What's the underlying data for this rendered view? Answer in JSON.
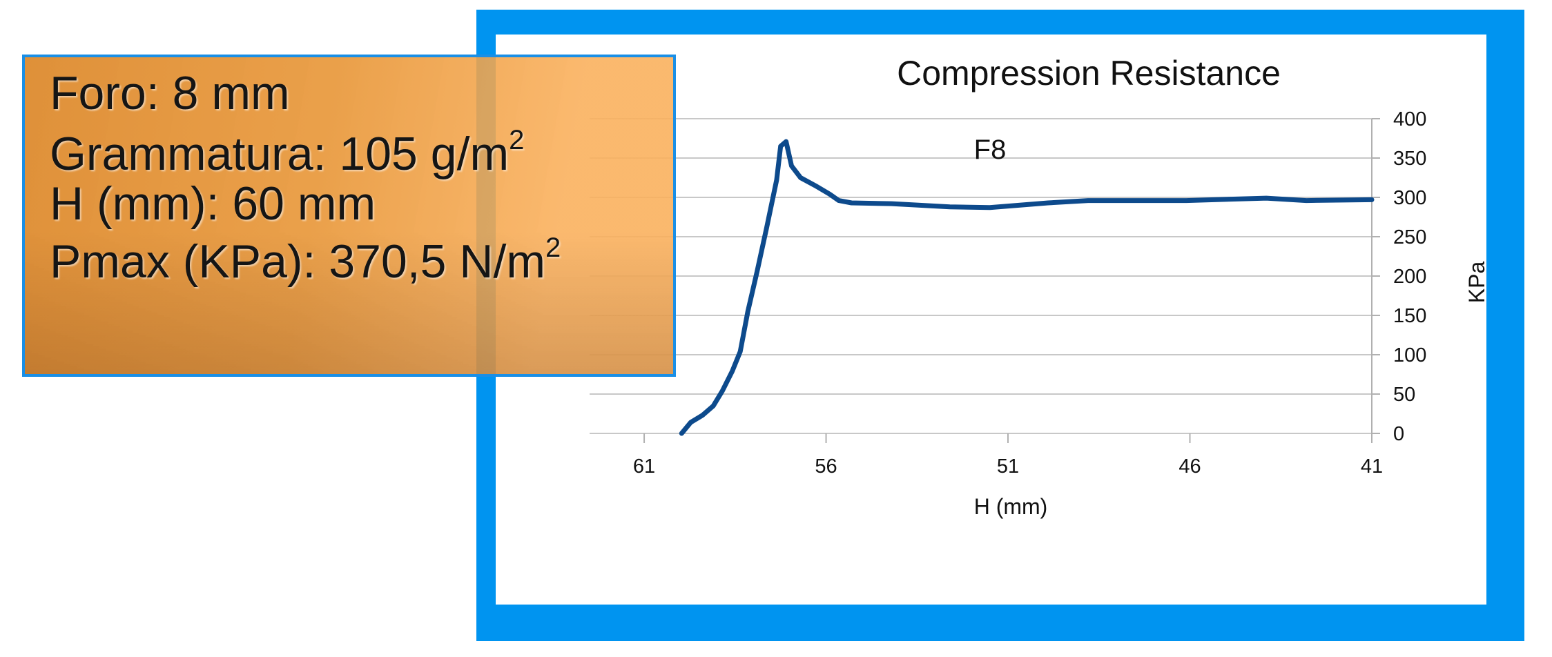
{
  "chart_data": {
    "type": "line",
    "title": "Compression Resistance",
    "x_label": "H (mm)",
    "y_label": "KPa",
    "x": [
      59.97,
      59.72,
      59.4,
      59.1,
      58.85,
      58.58,
      58.36,
      58.15,
      57.9,
      57.63,
      57.36,
      57.25,
      57.1,
      56.95,
      56.7,
      56.3,
      55.9,
      55.65,
      55.3,
      54.2,
      52.6,
      51.5,
      49.9,
      48.8,
      46.1,
      43.9,
      42.8,
      41
    ],
    "series": [
      {
        "name": "F8",
        "color": "#0d4a8c",
        "values": [
          0,
          14,
          23,
          35,
          54,
          79,
          104,
          155,
          205,
          262,
          322,
          365,
          371,
          340,
          325,
          315,
          304,
          296,
          293,
          292,
          288,
          287,
          293,
          296,
          296,
          299,
          296,
          297
        ]
      }
    ],
    "xlim": [
      62.5,
      41
    ],
    "xticks": [
      61,
      56,
      51,
      46,
      41
    ],
    "ylim": [
      0,
      400
    ],
    "yticks": [
      0,
      50,
      100,
      150,
      200,
      250,
      300,
      350,
      400
    ],
    "grid": true
  },
  "info_box": {
    "lines": [
      {
        "text": "Foro: 8 mm"
      },
      {
        "text": "Grammatura: 105 g/m",
        "sup": "2"
      },
      {
        "text": "H (mm): 60 mm"
      },
      {
        "text": "Pmax (KPa): 370,5 N/m",
        "sup": "2"
      }
    ]
  }
}
